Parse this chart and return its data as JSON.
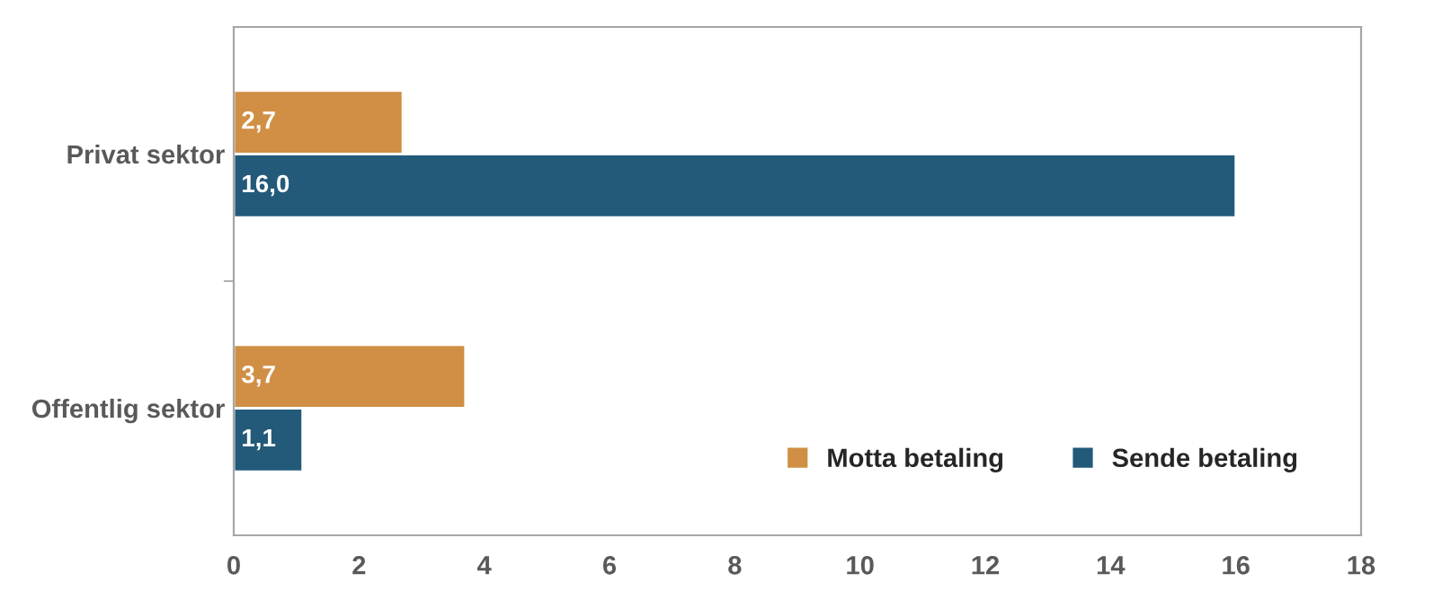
{
  "chart_data": {
    "type": "bar",
    "orientation": "horizontal",
    "categories": [
      "Privat sektor",
      "Offentlig sektor"
    ],
    "series": [
      {
        "name": "Motta betaling",
        "color": "#d08f45",
        "values": [
          2.7,
          3.7
        ],
        "value_labels": [
          "2,7",
          "3,7"
        ]
      },
      {
        "name": "Sende betaling",
        "color": "#235a7a",
        "values": [
          16.0,
          1.1
        ],
        "value_labels": [
          "16,0",
          "1,1"
        ]
      }
    ],
    "xlim": [
      0,
      18
    ],
    "xticks": [
      0,
      2,
      4,
      6,
      8,
      10,
      12,
      14,
      16,
      18
    ],
    "legend": "bottom right",
    "grid": false
  }
}
